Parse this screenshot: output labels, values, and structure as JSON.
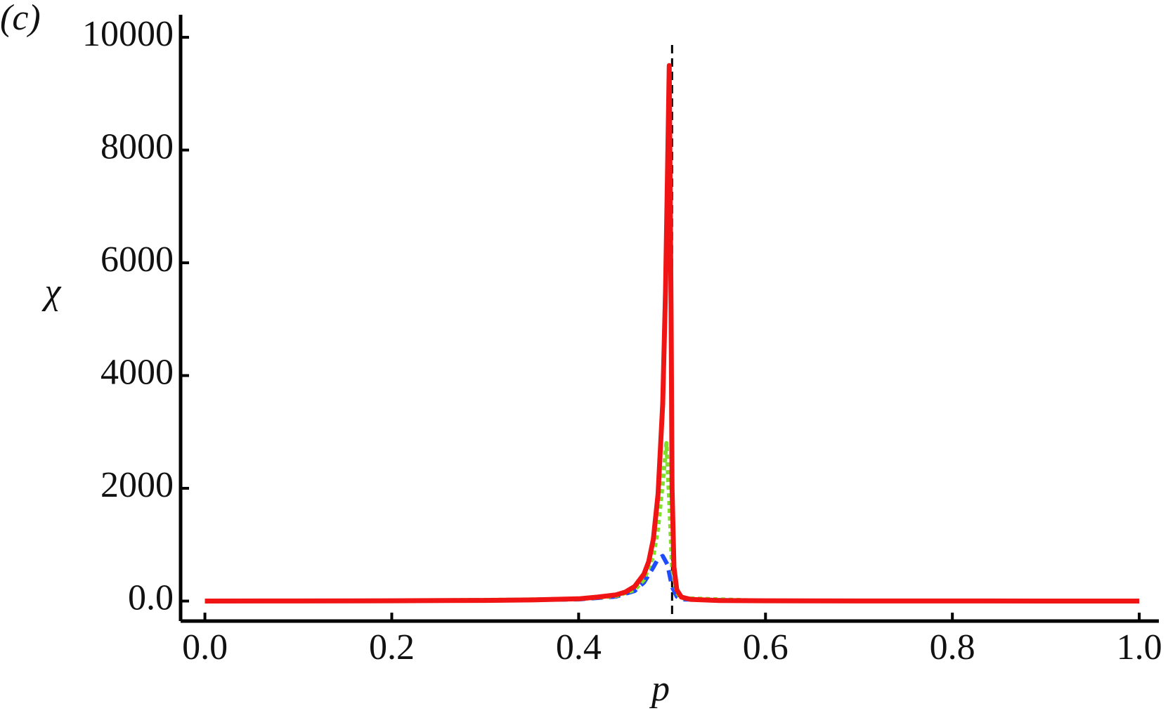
{
  "chart_data": {
    "type": "line",
    "panel_label": "(c)",
    "x_label": "p",
    "y_label": "χ",
    "xlim": [
      -0.026,
      1.021
    ],
    "ylim": [
      -355,
      10400
    ],
    "xticks": [
      {
        "value": 0,
        "label": "0.0"
      },
      0.2,
      0.4,
      0.6,
      0.8,
      {
        "value": 1,
        "label": "1.0"
      }
    ],
    "yticks": [
      {
        "value": 0,
        "label": "0.0"
      },
      2000,
      4000,
      6000,
      8000,
      10000
    ],
    "reference_line_x": 0.5,
    "series": [
      {
        "color": "#1f4cff",
        "style": "dashed",
        "x": [
          0,
          0.2,
          0.4,
          0.44,
          0.46,
          0.47,
          0.48,
          0.485,
          0.49,
          0.495,
          0.5,
          0.505,
          0.51,
          0.6,
          1.0
        ],
        "values": [
          0,
          3,
          30,
          80,
          180,
          330,
          600,
          750,
          800,
          650,
          250,
          80,
          30,
          3,
          0
        ]
      },
      {
        "color": "#7ee02a",
        "style": "dotted",
        "x": [
          0,
          0.2,
          0.4,
          0.44,
          0.46,
          0.47,
          0.48,
          0.485,
          0.49,
          0.494,
          0.497,
          0.5,
          0.505,
          0.51,
          0.6,
          1.0
        ],
        "values": [
          0,
          4,
          35,
          90,
          200,
          380,
          800,
          1300,
          2100,
          2800,
          1800,
          600,
          150,
          50,
          4,
          0
        ]
      },
      {
        "color": "#f01414",
        "style": "solid",
        "x": [
          0,
          0.1,
          0.2,
          0.3,
          0.35,
          0.4,
          0.42,
          0.44,
          0.45,
          0.46,
          0.47,
          0.475,
          0.48,
          0.485,
          0.49,
          0.493,
          0.495,
          0.497,
          0.499,
          0.5,
          0.502,
          0.505,
          0.51,
          0.52,
          0.55,
          0.6,
          0.7,
          0.8,
          0.9,
          1.0
        ],
        "values": [
          0,
          2,
          5,
          12,
          20,
          40,
          70,
          110,
          160,
          260,
          480,
          700,
          1100,
          1900,
          3500,
          5500,
          7500,
          9500,
          5000,
          2000,
          600,
          200,
          70,
          30,
          10,
          5,
          2,
          1,
          0,
          0
        ]
      }
    ]
  }
}
